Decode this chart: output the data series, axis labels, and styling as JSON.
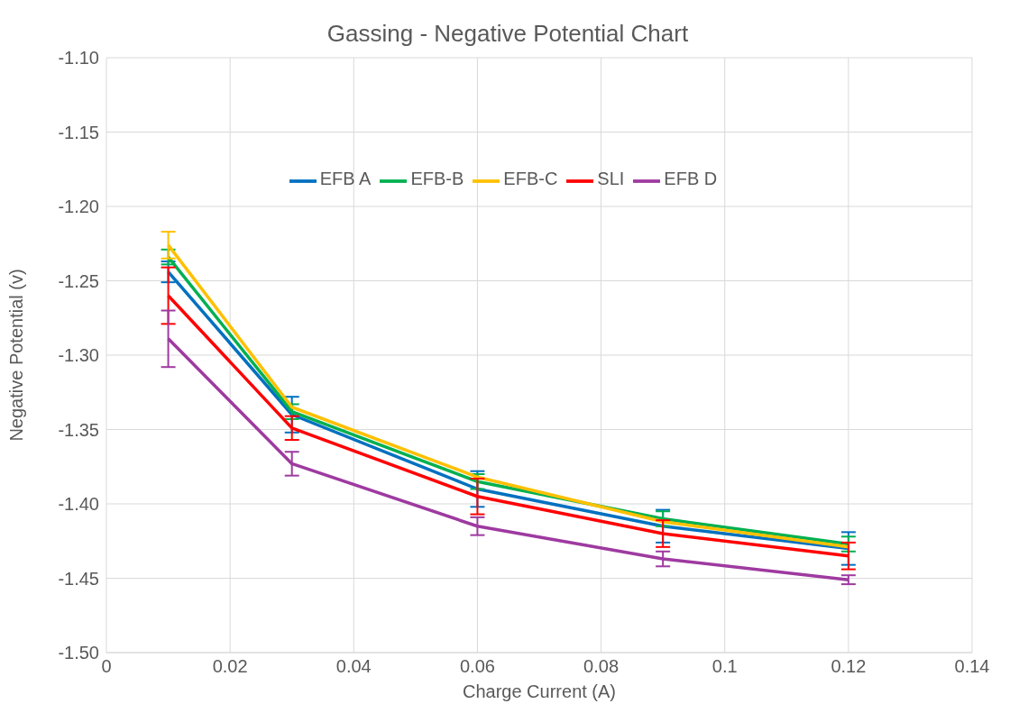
{
  "chart_data": {
    "type": "line",
    "title": "Gassing - Negative Potential Chart",
    "xlabel": "Charge Current (A)",
    "ylabel": "Negative Potential (v)",
    "x": [
      0.01,
      0.03,
      0.06,
      0.09,
      0.12
    ],
    "series": [
      {
        "name": "EFB A",
        "color": "#0070c0",
        "values": [
          -1.244,
          -1.34,
          -1.39,
          -1.415,
          -1.43
        ],
        "errors": [
          0.007,
          0.012,
          0.012,
          0.011,
          0.011
        ]
      },
      {
        "name": "EFB-B",
        "color": "#00b050",
        "values": [
          -1.234,
          -1.338,
          -1.385,
          -1.41,
          -1.427
        ],
        "errors": [
          0.005,
          0.005,
          0.005,
          0.005,
          0.005
        ]
      },
      {
        "name": "EFB-C",
        "color": "#ffc000",
        "values": [
          -1.226,
          -1.335,
          -1.382,
          -1.412,
          -1.429
        ],
        "errors": [
          0.009,
          null,
          null,
          null,
          null
        ]
      },
      {
        "name": "SLI",
        "color": "#ff0000",
        "values": [
          -1.26,
          -1.349,
          -1.395,
          -1.42,
          -1.435
        ],
        "errors": [
          0.019,
          0.008,
          0.012,
          0.009,
          0.009
        ]
      },
      {
        "name": "EFB D",
        "color": "#9e3aa0",
        "values": [
          -1.289,
          -1.373,
          -1.415,
          -1.437,
          -1.451
        ],
        "errors": [
          0.019,
          0.008,
          0.006,
          0.005,
          0.003
        ]
      }
    ],
    "xlim": [
      0,
      0.14
    ],
    "xticks": [
      0,
      0.02,
      0.04,
      0.06,
      0.08,
      0.1,
      0.12,
      0.14
    ],
    "ylim": [
      -1.5,
      -1.1
    ],
    "yticks": [
      {
        "value": -1.5,
        "label": "-1.50"
      },
      {
        "value": -1.45,
        "label": "-1.45"
      },
      {
        "value": -1.4,
        "label": "-1.40"
      },
      {
        "value": -1.35,
        "label": "-1.35"
      },
      {
        "value": -1.3,
        "label": "-1.30"
      },
      {
        "value": -1.25,
        "label": "-1.25"
      },
      {
        "value": -1.2,
        "label": "-1.20"
      },
      {
        "value": -1.15,
        "label": "-1.15"
      },
      {
        "value": -1.1,
        "label": "-1.10"
      }
    ],
    "grid": true,
    "legend": "top",
    "marker": "none",
    "line_style": "solid"
  }
}
